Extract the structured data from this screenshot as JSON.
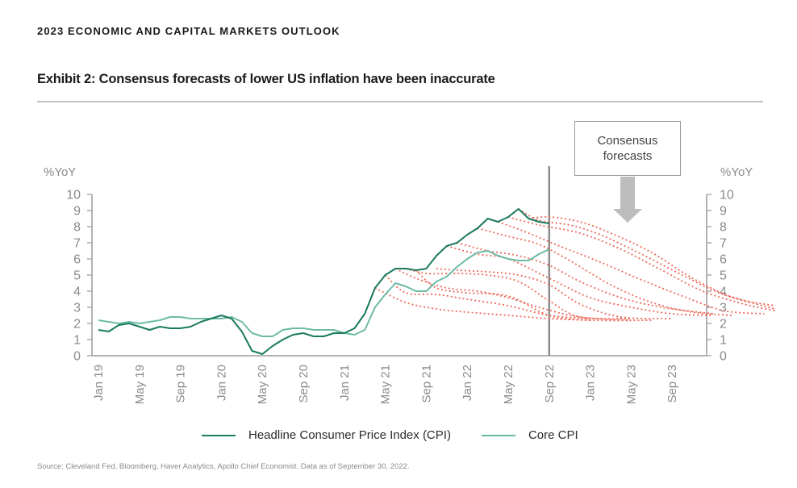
{
  "header": {
    "report_title": "2023 ECONOMIC AND CAPITAL MARKETS OUTLOOK",
    "exhibit_title": "Exhibit 2: Consensus forecasts of lower US inflation have been inaccurate"
  },
  "callout": {
    "line1": "Consensus",
    "line2": "forecasts"
  },
  "legend": {
    "items": [
      {
        "label": "Headline Consumer Price Index (CPI)",
        "color": "#1a7a5e"
      },
      {
        "label": "Core CPI",
        "color": "#6dbba5"
      }
    ]
  },
  "source": "Source: Cleveland Fed, Bloomberg, Haver Analytics, Apollo Chief Economist. Data as of September 30, 2022.",
  "chart_data": {
    "type": "line",
    "title": "Exhibit 2: Consensus forecasts of lower US inflation have been inaccurate",
    "xlabel": "",
    "ylabel_left": "%YoY",
    "ylabel_right": "%YoY",
    "ylim": [
      0,
      10
    ],
    "yticks": [
      0,
      1,
      2,
      3,
      4,
      5,
      6,
      7,
      8,
      9,
      10
    ],
    "x_start": "Jan 19",
    "x_end": "Dec 23",
    "x_tick_labels": [
      "Jan 19",
      "May 19",
      "Sep 19",
      "Jan 20",
      "May 20",
      "Sep 20",
      "Jan 21",
      "May 21",
      "Sep 21",
      "Jan 22",
      "May 22",
      "Sep 22",
      "Jan 23",
      "May 23",
      "Sep 23"
    ],
    "x_tick_step_months": 4,
    "vertical_marker": "Sep 22",
    "grid": false,
    "legend_position": "bottom-center",
    "series": [
      {
        "name": "Headline Consumer Price Index (CPI)",
        "color": "#1a7a5e",
        "start": "Jan 19",
        "frequency": "monthly",
        "values": [
          1.6,
          1.5,
          1.9,
          2.0,
          1.8,
          1.6,
          1.8,
          1.7,
          1.7,
          1.8,
          2.1,
          2.3,
          2.5,
          2.3,
          1.5,
          0.3,
          0.1,
          0.6,
          1.0,
          1.3,
          1.4,
          1.2,
          1.2,
          1.4,
          1.4,
          1.7,
          2.6,
          4.2,
          5.0,
          5.4,
          5.4,
          5.3,
          5.4,
          6.2,
          6.8,
          7.0,
          7.5,
          7.9,
          8.5,
          8.3,
          8.6,
          9.1,
          8.5,
          8.3,
          8.2
        ]
      },
      {
        "name": "Core CPI",
        "color": "#6dbba5",
        "start": "Jan 19",
        "frequency": "monthly",
        "values": [
          2.2,
          2.1,
          2.0,
          2.1,
          2.0,
          2.1,
          2.2,
          2.4,
          2.4,
          2.3,
          2.3,
          2.3,
          2.3,
          2.4,
          2.1,
          1.4,
          1.2,
          1.2,
          1.6,
          1.7,
          1.7,
          1.6,
          1.6,
          1.6,
          1.4,
          1.3,
          1.6,
          3.0,
          3.8,
          4.5,
          4.3,
          4.0,
          4.0,
          4.6,
          4.9,
          5.5,
          6.0,
          6.4,
          6.5,
          6.2,
          6.0,
          5.9,
          5.9,
          6.3,
          6.6
        ]
      }
    ],
    "forecasts": {
      "name": "Consensus forecasts",
      "color": "#ee6a5a",
      "style": "dotted",
      "paths": [
        {
          "start": "Apr 21",
          "points": [
            [
              27,
              4.2
            ],
            [
              30,
              3.3
            ],
            [
              33,
              2.9
            ],
            [
              36,
              2.7
            ],
            [
              40,
              2.5
            ],
            [
              44,
              2.3
            ],
            [
              48,
              2.2
            ]
          ]
        },
        {
          "start": "May 21",
          "points": [
            [
              28,
              5.0
            ],
            [
              30,
              3.9
            ],
            [
              33,
              3.8
            ],
            [
              36,
              3.5
            ],
            [
              40,
              3.1
            ],
            [
              44,
              2.5
            ],
            [
              48,
              2.3
            ]
          ]
        },
        {
          "start": "Jun 21",
          "points": [
            [
              29,
              5.4
            ],
            [
              31,
              4.8
            ],
            [
              34,
              4.2
            ],
            [
              37,
              4.0
            ],
            [
              40,
              3.6
            ],
            [
              43,
              3.0
            ],
            [
              47,
              2.4
            ],
            [
              52,
              2.2
            ]
          ]
        },
        {
          "start": "Jul 21",
          "points": [
            [
              30,
              5.4
            ],
            [
              32,
              5.1
            ],
            [
              35,
              5.1
            ],
            [
              38,
              5.0
            ],
            [
              41,
              4.6
            ],
            [
              44,
              3.4
            ],
            [
              47,
              2.4
            ],
            [
              52,
              2.3
            ]
          ]
        },
        {
          "start": "Aug 21",
          "points": [
            [
              31,
              5.3
            ],
            [
              33,
              4.2
            ],
            [
              36,
              3.9
            ],
            [
              40,
              3.7
            ],
            [
              44,
              2.5
            ],
            [
              48,
              2.2
            ],
            [
              54,
              2.2
            ]
          ]
        },
        {
          "start": "Sep 21",
          "points": [
            [
              33,
              5.4
            ],
            [
              35,
              5.3
            ],
            [
              38,
              5.2
            ],
            [
              41,
              5.0
            ],
            [
              44,
              4.4
            ],
            [
              47,
              3.2
            ],
            [
              51,
              2.4
            ],
            [
              56,
              2.3
            ]
          ]
        },
        {
          "start": "Nov 21",
          "points": [
            [
              34,
              6.8
            ],
            [
              37,
              6.3
            ],
            [
              40,
              6.0
            ],
            [
              44,
              4.8
            ],
            [
              48,
              3.6
            ],
            [
              52,
              3.0
            ],
            [
              56,
              2.6
            ],
            [
              60,
              2.5
            ]
          ]
        },
        {
          "start": "Dec 21",
          "points": [
            [
              35,
              7.0
            ],
            [
              38,
              6.5
            ],
            [
              41,
              6.2
            ],
            [
              44,
              5.6
            ],
            [
              47,
              4.6
            ],
            [
              51,
              3.6
            ],
            [
              55,
              3.0
            ],
            [
              60,
              2.6
            ]
          ]
        },
        {
          "start": "Feb 22",
          "points": [
            [
              37,
              7.9
            ],
            [
              40,
              7.4
            ],
            [
              43,
              6.9
            ],
            [
              46,
              5.9
            ],
            [
              50,
              4.4
            ],
            [
              54,
              3.3
            ],
            [
              58,
              2.7
            ],
            [
              62,
              2.5
            ]
          ]
        },
        {
          "start": "Apr 22",
          "points": [
            [
              39,
              8.3
            ],
            [
              42,
              7.6
            ],
            [
              45,
              6.8
            ],
            [
              49,
              5.8
            ],
            [
              53,
              4.7
            ],
            [
              57,
              3.7
            ],
            [
              61,
              2.8
            ],
            [
              65,
              2.6
            ]
          ]
        },
        {
          "start": "May 22",
          "points": [
            [
              40,
              8.6
            ],
            [
              43,
              8.1
            ],
            [
              47,
              7.6
            ],
            [
              51,
              6.6
            ],
            [
              55,
              5.3
            ],
            [
              59,
              4.0
            ],
            [
              63,
              3.2
            ],
            [
              66,
              2.8
            ]
          ]
        },
        {
          "start": "Jun 22",
          "points": [
            [
              41,
              9.1
            ],
            [
              43,
              8.4
            ],
            [
              46,
              8.1
            ],
            [
              49,
              7.5
            ],
            [
              53,
              6.3
            ],
            [
              57,
              5.0
            ],
            [
              61,
              3.8
            ],
            [
              66,
              2.9
            ]
          ]
        },
        {
          "start": "Jul 22",
          "points": [
            [
              42,
              8.5
            ],
            [
              44,
              8.6
            ],
            [
              47,
              8.3
            ],
            [
              50,
              7.6
            ],
            [
              54,
              6.4
            ],
            [
              58,
              4.8
            ],
            [
              62,
              3.6
            ],
            [
              66,
              3.1
            ]
          ]
        }
      ]
    }
  }
}
